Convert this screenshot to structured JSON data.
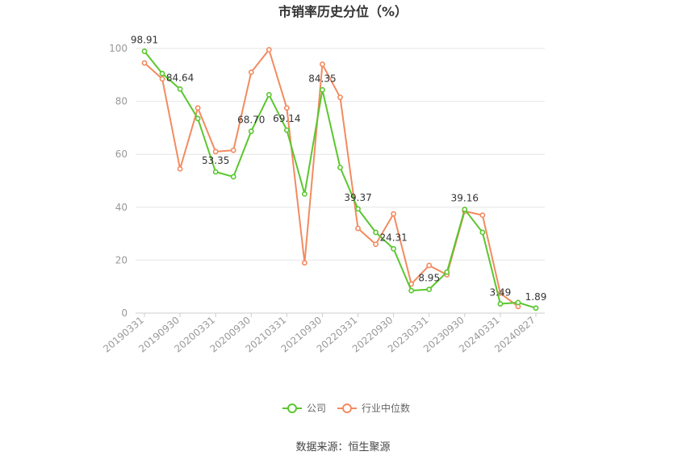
{
  "title": "市销率历史分位（%）",
  "source": "数据来源：恒生聚源",
  "chart_data": {
    "type": "line",
    "title": "市销率历史分位（%）",
    "x": [
      "20190331",
      "20190630",
      "20190930",
      "20191231",
      "20200331",
      "20200630",
      "20200930",
      "20201231",
      "20210331",
      "20210630",
      "20210930",
      "20211231",
      "20220331",
      "20220630",
      "20220930",
      "20221231",
      "20230331",
      "20230630",
      "20230930",
      "20231231",
      "20240331",
      "20240630",
      "20240827"
    ],
    "xticks": [
      "20190331",
      "20190930",
      "20200331",
      "20200930",
      "20210331",
      "20210930",
      "20220331",
      "20220930",
      "20230331",
      "20230930",
      "20240331",
      "20240827"
    ],
    "ylim": [
      0,
      100
    ],
    "yticks": [
      0,
      20,
      40,
      60,
      80,
      100
    ],
    "grid": true,
    "legend_position": "bottom",
    "series": [
      {
        "name": "公司",
        "color": "#5ac72e",
        "values": [
          98.91,
          90.5,
          84.64,
          73.5,
          53.35,
          51.5,
          68.7,
          82.5,
          69.14,
          45.0,
          84.35,
          55.0,
          39.37,
          30.5,
          24.31,
          8.5,
          8.95,
          15.5,
          39.16,
          30.5,
          3.49,
          4.0,
          1.89
        ]
      },
      {
        "name": "行业中位数",
        "color": "#f28b60",
        "values": [
          94.5,
          88.5,
          54.5,
          77.5,
          61.0,
          61.5,
          91.0,
          99.5,
          77.5,
          19.0,
          94.0,
          81.5,
          32.0,
          26.0,
          37.5,
          11.0,
          18.0,
          14.5,
          38.5,
          37.0,
          7.5,
          2.5,
          null
        ]
      }
    ],
    "data_labels": [
      {
        "series": 0,
        "index": 0,
        "text": "98.91"
      },
      {
        "series": 0,
        "index": 2,
        "text": "84.64"
      },
      {
        "series": 0,
        "index": 4,
        "text": "53.35"
      },
      {
        "series": 0,
        "index": 6,
        "text": "68.70"
      },
      {
        "series": 0,
        "index": 8,
        "text": "69.14"
      },
      {
        "series": 0,
        "index": 10,
        "text": "84.35"
      },
      {
        "series": 0,
        "index": 12,
        "text": "39.37"
      },
      {
        "series": 0,
        "index": 14,
        "text": "24.31"
      },
      {
        "series": 0,
        "index": 16,
        "text": "8.95"
      },
      {
        "series": 0,
        "index": 18,
        "text": "39.16"
      },
      {
        "series": 0,
        "index": 20,
        "text": "3.49"
      },
      {
        "series": 0,
        "index": 22,
        "text": "1.89"
      }
    ]
  }
}
